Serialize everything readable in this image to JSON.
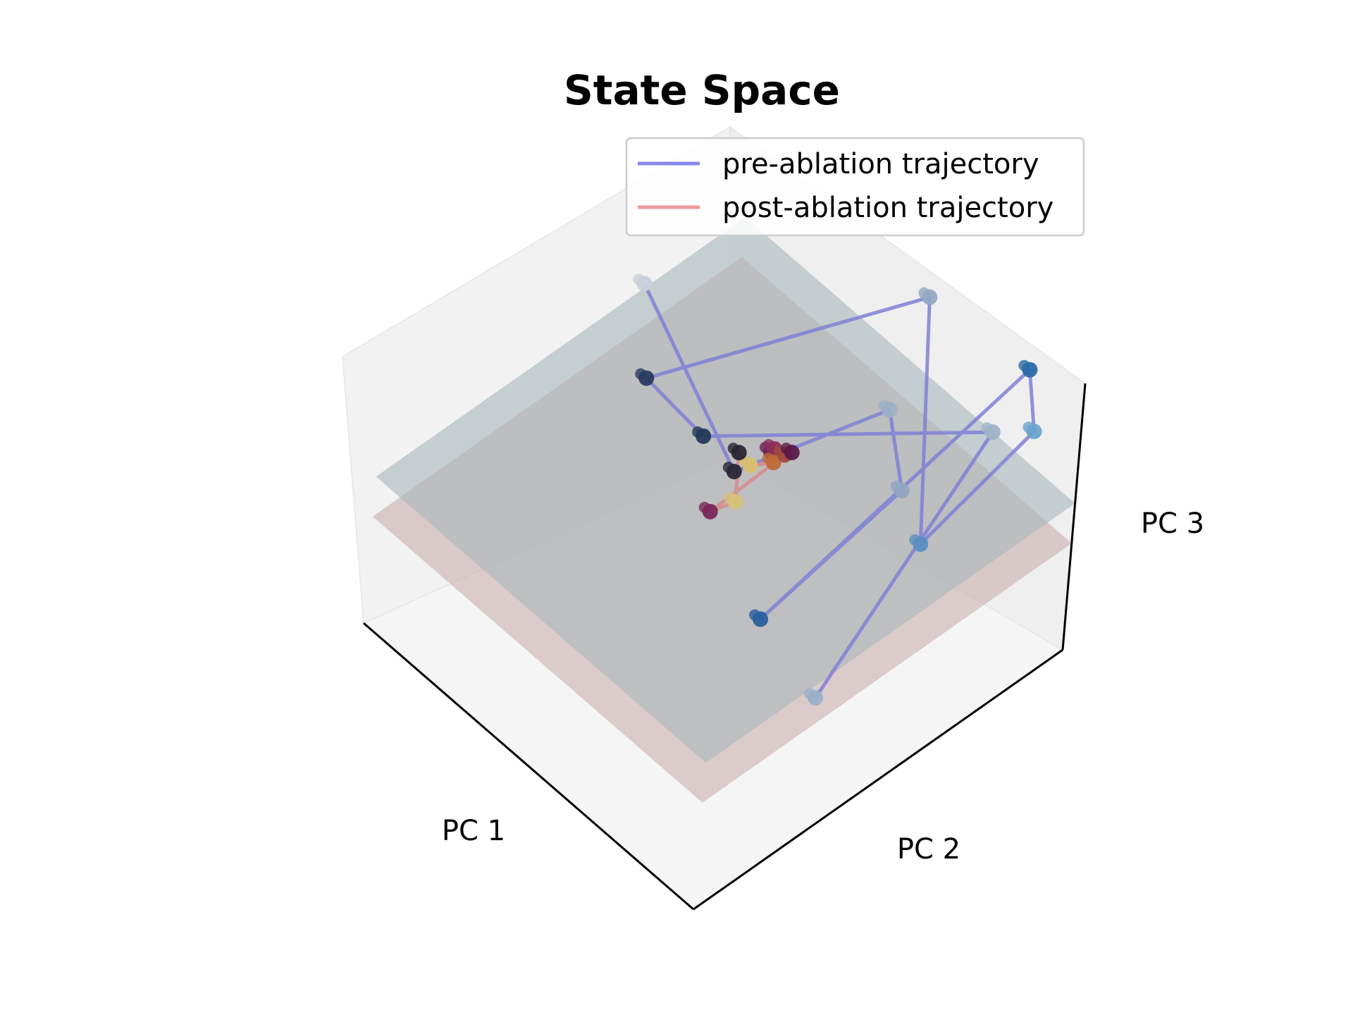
{
  "chart_data": {
    "type": "scatter",
    "projection": "3d",
    "title": "State Space",
    "xlabel": "PC 1",
    "ylabel": "PC 2",
    "zlabel": "PC 3",
    "grid": false,
    "legend_position": "top-right",
    "legend": [
      {
        "label": "pre-ablation trajectory",
        "color": "#8888ee"
      },
      {
        "label": "post-ablation trajectory",
        "color": "#ee9999"
      }
    ],
    "planes": [
      {
        "name": "",
        "color": "#a9b8bc",
        "corners_xyz": [
          [
            -1,
            -1,
            0.55
          ],
          [
            1,
            -1,
            0.55
          ],
          [
            1,
            1,
            0.55
          ],
          [
            -1,
            1,
            0.55
          ]
        ]
      },
      {
        "name": "",
        "color": "#c7a7a7",
        "corners_xyz": [
          [
            -1,
            -1,
            0.4
          ],
          [
            1,
            -1,
            0.4
          ],
          [
            1,
            1,
            0.4
          ],
          [
            -1,
            1,
            0.4
          ]
        ]
      }
    ],
    "series": [
      {
        "key": "pre",
        "line_color": "#7f80d6",
        "points": [
          {
            "x": 0.95,
            "y": -0.35,
            "z": 0.45,
            "color": "#9ab0c8"
          },
          {
            "x": 0.55,
            "y": 0.95,
            "z": 0.6,
            "color": "#a0b4c8"
          },
          {
            "x": -0.2,
            "y": 0.05,
            "z": 0.62,
            "color": "#233a58"
          },
          {
            "x": -0.55,
            "y": 0.05,
            "z": 0.65,
            "color": "#2a3b60"
          },
          {
            "x": 0.1,
            "y": 0.98,
            "z": 0.85,
            "color": "#92a9c2"
          },
          {
            "x": 0.98,
            "y": 0.15,
            "z": 0.8,
            "color": "#5a8fc0"
          },
          {
            "x": 0.95,
            "y": 0.78,
            "z": 0.9,
            "color": "#6aa4cc"
          },
          {
            "x": 0.7,
            "y": 0.98,
            "z": 0.9,
            "color": "#2a6aa6"
          },
          {
            "x": 0.7,
            "y": -0.45,
            "z": 0.66,
            "color": "#2a5f9c"
          },
          {
            "x": 0.8,
            "y": 0.2,
            "z": 0.88,
            "color": "#90a6c0"
          },
          {
            "x": 0.3,
            "y": 0.6,
            "z": 0.72,
            "color": "#9cb0c6"
          },
          {
            "x": 0.02,
            "y": 0.02,
            "z": 0.62,
            "color": "#2b2738"
          },
          {
            "x": -0.95,
            "y": 0.4,
            "z": 0.62,
            "color": "#c8d0dc"
          }
        ]
      },
      {
        "key": "post",
        "line_color": "#d98a8a",
        "points": [
          {
            "x": 0.12,
            "y": 0.12,
            "z": 0.7,
            "color": "#6a2050"
          },
          {
            "x": 0.1,
            "y": 0.16,
            "z": 0.68,
            "color": "#8a2e5c"
          },
          {
            "x": 0.16,
            "y": 0.1,
            "z": 0.69,
            "color": "#c06a3a"
          },
          {
            "x": 0.05,
            "y": 0.08,
            "z": 0.63,
            "color": "#d8c070"
          },
          {
            "x": -0.04,
            "y": 0.1,
            "z": 0.62,
            "color": "#2b2535"
          },
          {
            "x": 0.14,
            "y": -0.08,
            "z": 0.62,
            "color": "#d6c27a"
          },
          {
            "x": 0.1,
            "y": -0.18,
            "z": 0.61,
            "color": "#7a2858"
          },
          {
            "x": 0.18,
            "y": 0.14,
            "z": 0.71,
            "color": "#a04a40"
          },
          {
            "x": 0.2,
            "y": 0.16,
            "z": 0.72,
            "color": "#5a1a48"
          }
        ]
      }
    ]
  }
}
